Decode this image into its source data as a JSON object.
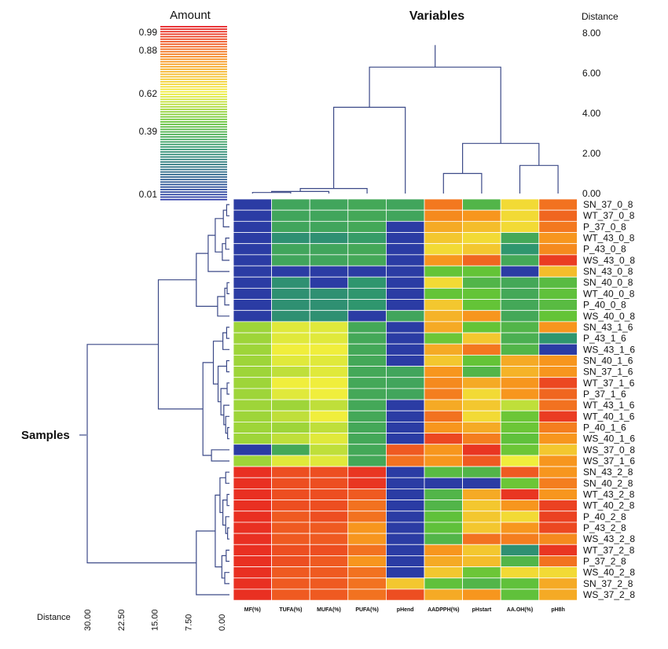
{
  "chart_data": {
    "type": "heatmap",
    "top_title": "Variables",
    "left_title": "Samples",
    "legend": {
      "title": "Amount",
      "ticks": [
        "0.99",
        "0.88",
        "0.62",
        "0.39",
        "0.01"
      ],
      "tick_values": [
        0.99,
        0.88,
        0.62,
        0.39,
        0.01
      ]
    },
    "top_distance": {
      "label": "Distance",
      "ticks": [
        "8.00",
        "6.00",
        "4.00",
        "2.00",
        "0.00"
      ],
      "tick_values": [
        8,
        6,
        4,
        2,
        0
      ]
    },
    "bottom_distance": {
      "label": "Distance",
      "ticks": [
        "30.00",
        "22.50",
        "15.00",
        "7.50",
        "0.00"
      ],
      "tick_values": [
        30,
        22.5,
        15,
        7.5,
        0
      ]
    },
    "columns": [
      "MF(%)",
      "TUFA(%)",
      "MUFA(%)",
      "PUFA(%)",
      "pHend",
      "AADPPH(%)",
      "pHstart",
      "AA.OH(%)",
      "pH8h"
    ],
    "rows": [
      "SN_37_0_8",
      "WT_37_0_8",
      "P_37_0_8",
      "WT_43_0_8",
      "P_43_0_8",
      "WS_43_0_8",
      "SN_43_0_8",
      "SN_40_0_8",
      "WT_40_0_8",
      "P_40_0_8",
      "WS_40_0_8",
      "SN_43_1_6",
      "P_43_1_6",
      "WS_43_1_6",
      "SN_40_1_6",
      "SN_37_1_6",
      "WT_37_1_6",
      "P_37_1_6",
      "WT_43_1_6",
      "WT_40_1_6",
      "P_40_1_6",
      "WS_40_1_6",
      "WS_37_0_8",
      "WS_37_1_6",
      "SN_43_2_8",
      "SN_40_2_8",
      "WT_43_2_8",
      "WT_40_2_8",
      "P_40_2_8",
      "P_43_2_8",
      "WS_43_2_8",
      "WT_37_2_8",
      "P_37_2_8",
      "WS_40_2_8",
      "SN_37_2_8",
      "WS_37_2_8"
    ],
    "values": [
      [
        0.01,
        0.35,
        0.35,
        0.36,
        0.35,
        0.85,
        0.4,
        0.66,
        0.86
      ],
      [
        0.01,
        0.35,
        0.35,
        0.36,
        0.35,
        0.82,
        0.8,
        0.66,
        0.88
      ],
      [
        0.01,
        0.35,
        0.35,
        0.36,
        0.01,
        0.76,
        0.72,
        0.66,
        0.85
      ],
      [
        0.01,
        0.28,
        0.28,
        0.32,
        0.01,
        0.7,
        0.66,
        0.36,
        0.8
      ],
      [
        0.01,
        0.35,
        0.35,
        0.36,
        0.01,
        0.66,
        0.7,
        0.3,
        0.82
      ],
      [
        0.01,
        0.35,
        0.35,
        0.36,
        0.01,
        0.8,
        0.88,
        0.36,
        0.95
      ],
      [
        0.01,
        0.01,
        0.01,
        0.01,
        0.01,
        0.45,
        0.45,
        0.01,
        0.72
      ],
      [
        0.01,
        0.28,
        0.01,
        0.3,
        0.01,
        0.66,
        0.4,
        0.36,
        0.42
      ],
      [
        0.01,
        0.28,
        0.28,
        0.3,
        0.01,
        0.45,
        0.45,
        0.36,
        0.44
      ],
      [
        0.01,
        0.28,
        0.28,
        0.3,
        0.01,
        0.7,
        0.45,
        0.36,
        0.42
      ],
      [
        0.01,
        0.28,
        0.28,
        0.01,
        0.35,
        0.74,
        0.8,
        0.36,
        0.45
      ],
      [
        0.52,
        0.6,
        0.6,
        0.36,
        0.01,
        0.76,
        0.45,
        0.4,
        0.8
      ],
      [
        0.52,
        0.6,
        0.6,
        0.36,
        0.01,
        0.46,
        0.7,
        0.38,
        0.3
      ],
      [
        0.52,
        0.62,
        0.62,
        0.36,
        0.01,
        0.76,
        0.85,
        0.4,
        0.01
      ],
      [
        0.52,
        0.6,
        0.6,
        0.36,
        0.01,
        0.7,
        0.45,
        0.76,
        0.8
      ],
      [
        0.52,
        0.56,
        0.6,
        0.36,
        0.35,
        0.8,
        0.4,
        0.74,
        0.8
      ],
      [
        0.52,
        0.62,
        0.62,
        0.36,
        0.35,
        0.82,
        0.76,
        0.8,
        0.93
      ],
      [
        0.52,
        0.6,
        0.62,
        0.36,
        0.35,
        0.84,
        0.66,
        0.8,
        0.88
      ],
      [
        0.52,
        0.52,
        0.56,
        0.36,
        0.01,
        0.76,
        0.7,
        0.56,
        0.86
      ],
      [
        0.52,
        0.56,
        0.62,
        0.36,
        0.01,
        0.86,
        0.66,
        0.46,
        0.95
      ],
      [
        0.52,
        0.52,
        0.56,
        0.36,
        0.01,
        0.8,
        0.76,
        0.46,
        0.84
      ],
      [
        0.52,
        0.56,
        0.6,
        0.36,
        0.01,
        0.93,
        0.84,
        0.44,
        0.8
      ],
      [
        0.01,
        0.36,
        0.56,
        0.36,
        0.9,
        0.8,
        0.96,
        0.46,
        0.7
      ],
      [
        0.52,
        0.6,
        0.6,
        0.36,
        0.86,
        0.8,
        0.9,
        0.62,
        0.8
      ],
      [
        0.97,
        0.92,
        0.92,
        0.96,
        0.01,
        0.42,
        0.4,
        0.9,
        0.8
      ],
      [
        0.97,
        0.92,
        0.92,
        0.96,
        0.01,
        0.01,
        0.01,
        0.46,
        0.84
      ],
      [
        0.97,
        0.92,
        0.92,
        0.9,
        0.01,
        0.4,
        0.76,
        0.96,
        0.8
      ],
      [
        0.97,
        0.92,
        0.92,
        0.86,
        0.01,
        0.4,
        0.7,
        0.8,
        0.94
      ],
      [
        0.97,
        0.9,
        0.92,
        0.86,
        0.01,
        0.44,
        0.7,
        0.66,
        0.94
      ],
      [
        0.97,
        0.9,
        0.9,
        0.8,
        0.01,
        0.44,
        0.7,
        0.8,
        0.93
      ],
      [
        0.97,
        0.9,
        0.9,
        0.8,
        0.01,
        0.4,
        0.86,
        0.84,
        0.82
      ],
      [
        0.97,
        0.92,
        0.92,
        0.86,
        0.01,
        0.8,
        0.7,
        0.28,
        0.96
      ],
      [
        0.97,
        0.92,
        0.9,
        0.8,
        0.01,
        0.76,
        0.72,
        0.4,
        0.86
      ],
      [
        0.97,
        0.9,
        0.9,
        0.86,
        0.01,
        0.7,
        0.46,
        0.66,
        0.66
      ],
      [
        0.97,
        0.9,
        0.9,
        0.86,
        0.7,
        0.44,
        0.4,
        0.44,
        0.76
      ],
      [
        0.97,
        0.9,
        0.9,
        0.86,
        0.92,
        0.76,
        0.8,
        0.44,
        0.76
      ]
    ]
  }
}
